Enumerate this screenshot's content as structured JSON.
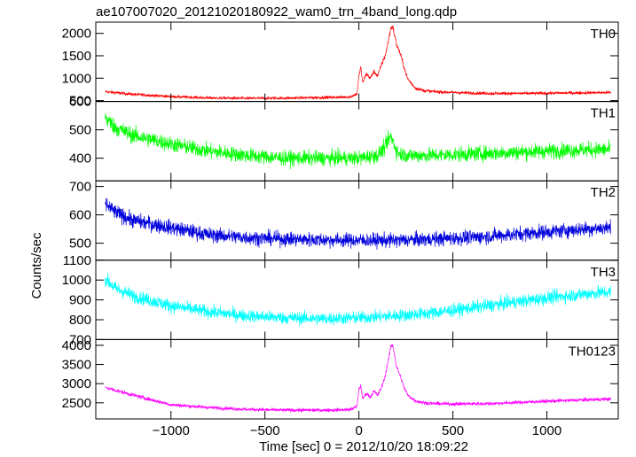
{
  "title": "ae107007020_20121020180922_wam0_trn_4band_long.qdp",
  "xlabel": "Time [sec] 0 = 2012/10/20 18:09:22",
  "ylabel": "Counts/sec",
  "x_ticks": [
    -1000,
    -500,
    0,
    500,
    1000
  ],
  "x_tick_labels": [
    "−1000",
    "−500",
    "0",
    "500",
    "1000"
  ],
  "chart_data": {
    "type": "line",
    "title": "ae107007020_20121020180922_wam0_trn_4band_long.qdp",
    "xlabel": "Time [sec] 0 = 2012/10/20 18:09:22",
    "ylabel": "Counts/sec",
    "xlim": [
      -1400,
      1380
    ],
    "grid": false,
    "legend": "none",
    "panels": [
      {
        "name": "TH0",
        "color": "#ff0000",
        "ylim": [
          480,
          2250
        ],
        "yticks": [
          500,
          1000,
          1500,
          2000
        ],
        "noise": 35,
        "x": [
          -1350,
          -1200,
          -1000,
          -800,
          -600,
          -400,
          -200,
          -50,
          -10,
          0,
          10,
          20,
          40,
          60,
          80,
          100,
          120,
          140,
          160,
          170,
          180,
          190,
          200,
          220,
          240,
          260,
          300,
          350,
          400,
          500,
          700,
          900,
          1100,
          1340
        ],
        "y": [
          700,
          640,
          590,
          560,
          550,
          555,
          570,
          580,
          650,
          1050,
          1250,
          900,
          1100,
          1000,
          1150,
          1050,
          1300,
          1500,
          1900,
          2120,
          2150,
          1950,
          1750,
          1550,
          1250,
          980,
          780,
          720,
          700,
          680,
          660,
          660,
          670,
          680
        ]
      },
      {
        "name": "TH1",
        "color": "#00ff00",
        "ylim": [
          320,
          600
        ],
        "yticks": [
          400,
          500,
          600
        ],
        "noise": 30,
        "x": [
          -1350,
          -1300,
          -1200,
          -1000,
          -800,
          -600,
          -400,
          -200,
          0,
          100,
          140,
          160,
          170,
          180,
          190,
          200,
          220,
          260,
          300,
          400,
          600,
          800,
          1000,
          1200,
          1340
        ],
        "y": [
          545,
          510,
          480,
          450,
          425,
          410,
          400,
          400,
          400,
          410,
          440,
          470,
          475,
          465,
          445,
          425,
          415,
          410,
          410,
          410,
          415,
          420,
          425,
          430,
          430
        ]
      },
      {
        "name": "TH2",
        "color": "#0000dd",
        "ylim": [
          440,
          720
        ],
        "yticks": [
          500,
          600,
          700
        ],
        "noise": 28,
        "x": [
          -1350,
          -1300,
          -1200,
          -1000,
          -800,
          -600,
          -400,
          -200,
          0,
          200,
          400,
          600,
          800,
          1000,
          1200,
          1340
        ],
        "y": [
          640,
          610,
          580,
          555,
          530,
          520,
          515,
          512,
          510,
          510,
          515,
          520,
          530,
          540,
          550,
          555
        ]
      },
      {
        "name": "TH3",
        "color": "#00ffff",
        "ylim": [
          700,
          1100
        ],
        "yticks": [
          700,
          800,
          900,
          1000,
          1100
        ],
        "noise": 35,
        "x": [
          -1350,
          -1300,
          -1200,
          -1000,
          -800,
          -600,
          -400,
          -200,
          0,
          200,
          400,
          600,
          800,
          1000,
          1200,
          1340
        ],
        "y": [
          1010,
          960,
          920,
          870,
          840,
          820,
          810,
          805,
          810,
          820,
          835,
          860,
          885,
          910,
          930,
          940
        ]
      },
      {
        "name": "TH0123",
        "color": "#ff00ff",
        "ylim": [
          2080,
          4150
        ],
        "yticks": [
          2500,
          3000,
          3500,
          4000
        ],
        "noise": 50,
        "x": [
          -1350,
          -1200,
          -1000,
          -800,
          -600,
          -400,
          -200,
          -50,
          -10,
          0,
          10,
          20,
          40,
          60,
          80,
          100,
          120,
          140,
          160,
          170,
          180,
          190,
          200,
          220,
          240,
          260,
          300,
          350,
          400,
          500,
          700,
          900,
          1100,
          1340
        ],
        "y": [
          2900,
          2700,
          2450,
          2380,
          2330,
          2310,
          2310,
          2320,
          2400,
          2850,
          2950,
          2600,
          2750,
          2650,
          2800,
          2700,
          2900,
          3200,
          3700,
          3980,
          4000,
          3750,
          3450,
          3200,
          2900,
          2700,
          2550,
          2500,
          2480,
          2470,
          2480,
          2520,
          2560,
          2600
        ]
      }
    ]
  }
}
